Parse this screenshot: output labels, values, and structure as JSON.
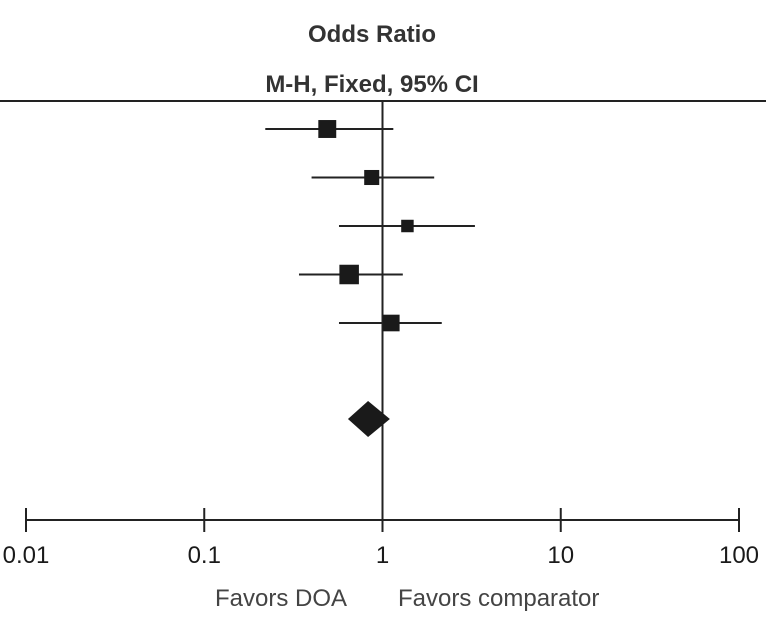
{
  "chart_data": {
    "type": "forest",
    "title": "Odds Ratio",
    "subtitle": "M-H, Fixed, 95% CI",
    "x_scale": "log",
    "xlim": [
      0.01,
      100
    ],
    "xticks": [
      {
        "value": 0.01,
        "label": "0.01"
      },
      {
        "value": 0.1,
        "label": "0.1"
      },
      {
        "value": 1,
        "label": "1"
      },
      {
        "value": 10,
        "label": "10"
      },
      {
        "value": 100,
        "label": "100"
      }
    ],
    "reference_value": 1,
    "studies": [
      {
        "estimate": 0.49,
        "ci_low": 0.22,
        "ci_high": 1.15,
        "weight": 0.31
      },
      {
        "estimate": 0.87,
        "ci_low": 0.4,
        "ci_high": 1.95,
        "weight": 0.22
      },
      {
        "estimate": 1.38,
        "ci_low": 0.57,
        "ci_high": 3.3,
        "weight": 0.14
      },
      {
        "estimate": 0.65,
        "ci_low": 0.34,
        "ci_high": 1.3,
        "weight": 0.36
      },
      {
        "estimate": 1.12,
        "ci_low": 0.57,
        "ci_high": 2.15,
        "weight": 0.27
      }
    ],
    "pooled": {
      "estimate": 0.83,
      "ci_low": 0.64,
      "ci_high": 1.1
    },
    "favors_left": "Favors DOA",
    "favors_right": "Favors comparator",
    "colors": {
      "marks": "#1a1a1a",
      "lines": "#222222",
      "text": "#333333"
    }
  }
}
